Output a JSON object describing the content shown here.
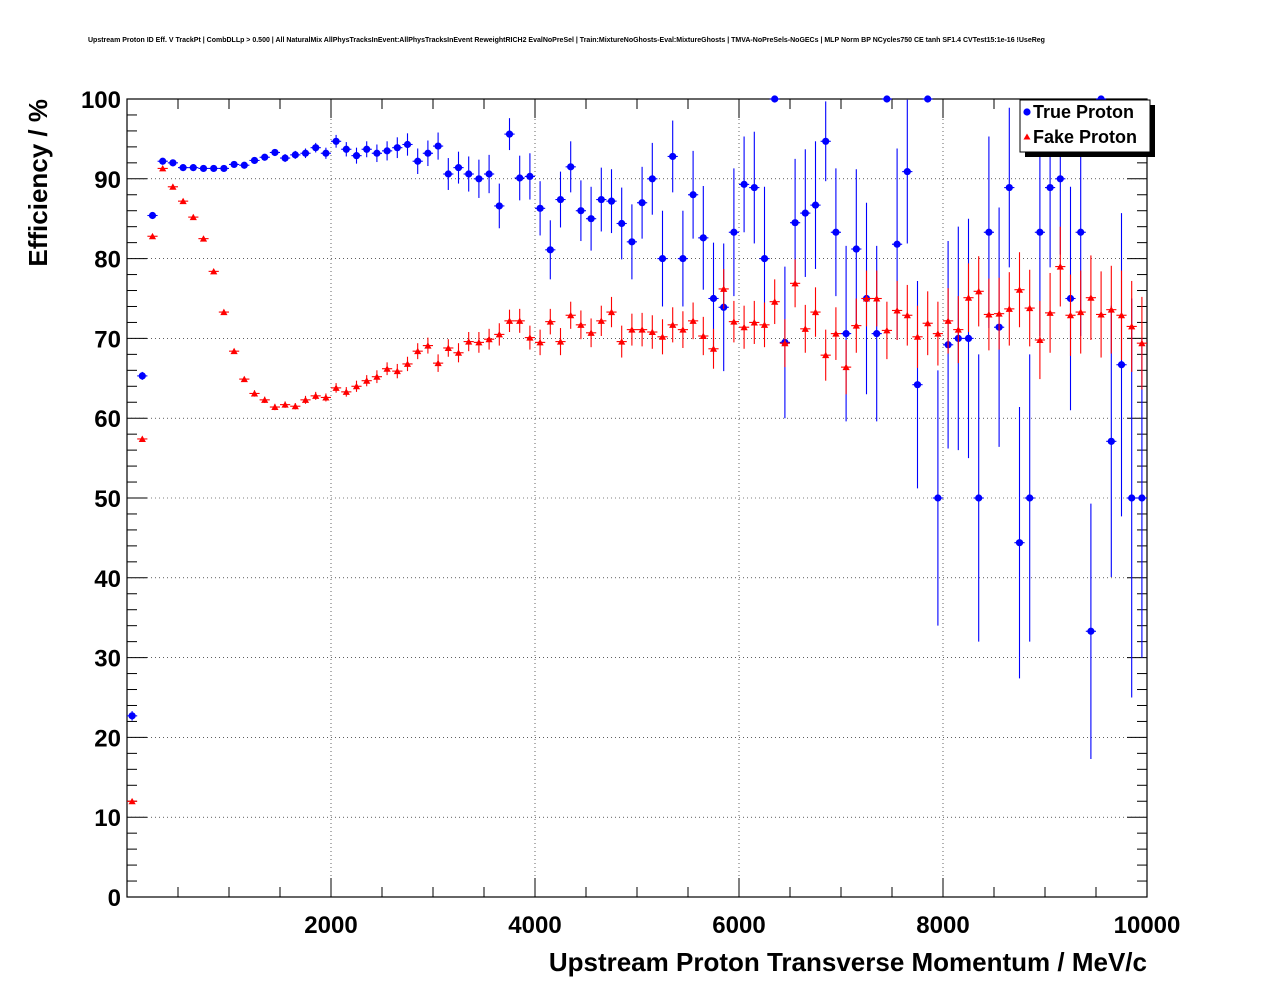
{
  "chart_data": {
    "type": "scatter",
    "title": "Upstream Proton ID Eff. V TrackPt | CombDLLp > 0.500 | All NaturalMix AllPhysTracksInEvent:AllPhysTracksInEvent ReweightRICH2 EvalNoPreSel | Train:MixtureNoGhosts-Eval:MixtureGhosts | TMVA-NoPreSels-NoGECs | MLP Norm BP NCycles750 CE tanh SF1.4 CVTest15:1e-16 !UseReg",
    "xlabel": "Upstream Proton Transverse Momentum / MeV/c",
    "ylabel": "Efficiency / %",
    "xlim": [
      0,
      10000
    ],
    "ylim": [
      0,
      100
    ],
    "x_ticks": [
      2000,
      4000,
      6000,
      8000,
      10000
    ],
    "y_ticks": [
      0,
      10,
      20,
      30,
      40,
      50,
      60,
      70,
      80,
      90,
      100
    ],
    "grid": true,
    "legend": "top-right",
    "series": [
      {
        "name": "True Proton",
        "color": "#0000ff",
        "marker": "circle",
        "points": [
          [
            50,
            22.7,
            0.6
          ],
          [
            150,
            65.3,
            0.5
          ],
          [
            250,
            85.4,
            0.4
          ],
          [
            350,
            92.2,
            0.3
          ],
          [
            450,
            92.0,
            0.3
          ],
          [
            550,
            91.4,
            0.3
          ],
          [
            650,
            91.4,
            0.3
          ],
          [
            750,
            91.3,
            0.3
          ],
          [
            850,
            91.3,
            0.3
          ],
          [
            950,
            91.3,
            0.3
          ],
          [
            1050,
            91.8,
            0.3
          ],
          [
            1150,
            91.7,
            0.3
          ],
          [
            1250,
            92.3,
            0.4
          ],
          [
            1350,
            92.7,
            0.4
          ],
          [
            1450,
            93.3,
            0.4
          ],
          [
            1550,
            92.6,
            0.5
          ],
          [
            1650,
            93.0,
            0.5
          ],
          [
            1750,
            93.2,
            0.6
          ],
          [
            1850,
            93.9,
            0.6
          ],
          [
            1950,
            93.2,
            0.7
          ],
          [
            2050,
            94.7,
            0.8
          ],
          [
            2150,
            93.7,
            0.9
          ],
          [
            2250,
            92.9,
            1.0
          ],
          [
            2350,
            93.7,
            1.0
          ],
          [
            2450,
            93.2,
            1.1
          ],
          [
            2550,
            93.5,
            1.2
          ],
          [
            2650,
            93.9,
            1.3
          ],
          [
            2750,
            94.3,
            1.4
          ],
          [
            2850,
            92.2,
            1.6
          ],
          [
            2950,
            93.2,
            1.6
          ],
          [
            3050,
            94.1,
            1.7
          ],
          [
            3150,
            90.6,
            2.0
          ],
          [
            3250,
            91.4,
            2.0
          ],
          [
            3350,
            90.6,
            2.2
          ],
          [
            3450,
            90.0,
            2.4
          ],
          [
            3550,
            90.6,
            2.4
          ],
          [
            3650,
            86.6,
            2.8
          ],
          [
            3750,
            95.6,
            2.0
          ],
          [
            3850,
            90.1,
            2.8
          ],
          [
            3950,
            90.3,
            2.9
          ],
          [
            4050,
            86.3,
            3.4
          ],
          [
            4150,
            81.1,
            3.7
          ],
          [
            4250,
            87.4,
            3.5
          ],
          [
            4350,
            91.5,
            3.2
          ],
          [
            4450,
            86.0,
            3.8
          ],
          [
            4550,
            85.0,
            4.0
          ],
          [
            4650,
            87.4,
            4.0
          ],
          [
            4750,
            87.2,
            4.0
          ],
          [
            4850,
            84.4,
            4.5
          ],
          [
            4950,
            82.1,
            4.7
          ],
          [
            5050,
            87.0,
            4.5
          ],
          [
            5150,
            90.0,
            4.5
          ],
          [
            5250,
            80.0,
            6.0
          ],
          [
            5350,
            92.8,
            4.5
          ],
          [
            5450,
            80.0,
            6.0
          ],
          [
            5550,
            88.0,
            5.5
          ],
          [
            5650,
            82.6,
            6.5
          ],
          [
            5750,
            75.0,
            7.0
          ],
          [
            5850,
            73.9,
            8.0
          ],
          [
            5950,
            83.3,
            8.0
          ],
          [
            6050,
            89.3,
            6.0
          ],
          [
            6150,
            88.9,
            7.0
          ],
          [
            6250,
            80.0,
            9.0
          ],
          [
            6350,
            100.0,
            0.0
          ],
          [
            6450,
            69.5,
            9.5
          ],
          [
            6550,
            84.5,
            8.0
          ],
          [
            6650,
            85.7,
            8.0
          ],
          [
            6750,
            86.7,
            8.0
          ],
          [
            6850,
            94.7,
            5.0
          ],
          [
            6950,
            83.3,
            8.0
          ],
          [
            7050,
            70.6,
            11.0
          ],
          [
            7150,
            81.2,
            10.0
          ],
          [
            7250,
            75.0,
            12.0
          ],
          [
            7350,
            70.6,
            11.0
          ],
          [
            7450,
            100.0,
            0.0
          ],
          [
            7550,
            81.8,
            12.0
          ],
          [
            7650,
            90.9,
            9.0
          ],
          [
            7750,
            64.2,
            13.0
          ],
          [
            7850,
            100.0,
            0.0
          ],
          [
            7950,
            50.0,
            16.0
          ],
          [
            8050,
            69.2,
            13.0
          ],
          [
            8150,
            70.0,
            14.0
          ],
          [
            8250,
            70.0,
            15.0
          ],
          [
            8350,
            50.0,
            18.0
          ],
          [
            8450,
            83.3,
            12.0
          ],
          [
            8550,
            71.4,
            15.0
          ],
          [
            8650,
            88.9,
            10.0
          ],
          [
            8750,
            44.4,
            17.0
          ],
          [
            8850,
            50.0,
            18.0
          ],
          [
            8950,
            83.3,
            13.0
          ],
          [
            9050,
            88.9,
            10.0
          ],
          [
            9150,
            90.0,
            9.5
          ],
          [
            9250,
            75.0,
            14.0
          ],
          [
            9350,
            83.3,
            13.0
          ],
          [
            9450,
            33.3,
            16.0
          ],
          [
            9550,
            100.0,
            0.0
          ],
          [
            9650,
            57.1,
            17.0
          ],
          [
            9750,
            66.7,
            19.0
          ],
          [
            9850,
            50.0,
            25.0
          ],
          [
            9950,
            50.0,
            20.0
          ]
        ]
      },
      {
        "name": "Fake Proton",
        "color": "#ff0000",
        "marker": "triangle",
        "points": [
          [
            50,
            12.0,
            0.2
          ],
          [
            150,
            57.4,
            0.3
          ],
          [
            250,
            82.8,
            0.3
          ],
          [
            350,
            91.3,
            0.3
          ],
          [
            450,
            89.0,
            0.3
          ],
          [
            550,
            87.2,
            0.3
          ],
          [
            650,
            85.2,
            0.3
          ],
          [
            750,
            82.5,
            0.3
          ],
          [
            850,
            78.4,
            0.3
          ],
          [
            950,
            73.3,
            0.3
          ],
          [
            1050,
            68.4,
            0.3
          ],
          [
            1150,
            64.9,
            0.3
          ],
          [
            1250,
            63.1,
            0.4
          ],
          [
            1350,
            62.3,
            0.4
          ],
          [
            1450,
            61.4,
            0.4
          ],
          [
            1550,
            61.7,
            0.4
          ],
          [
            1650,
            61.5,
            0.4
          ],
          [
            1750,
            62.3,
            0.5
          ],
          [
            1850,
            62.8,
            0.5
          ],
          [
            1950,
            62.6,
            0.5
          ],
          [
            2050,
            63.8,
            0.6
          ],
          [
            2150,
            63.3,
            0.6
          ],
          [
            2250,
            64.0,
            0.7
          ],
          [
            2350,
            64.7,
            0.7
          ],
          [
            2450,
            65.2,
            0.8
          ],
          [
            2550,
            66.2,
            0.8
          ],
          [
            2650,
            65.9,
            0.9
          ],
          [
            2750,
            66.8,
            0.9
          ],
          [
            2850,
            68.4,
            1.0
          ],
          [
            2950,
            69.1,
            1.0
          ],
          [
            3050,
            66.9,
            1.1
          ],
          [
            3150,
            68.8,
            1.1
          ],
          [
            3250,
            68.2,
            1.2
          ],
          [
            3350,
            69.6,
            1.2
          ],
          [
            3450,
            69.5,
            1.3
          ],
          [
            3550,
            69.9,
            1.3
          ],
          [
            3650,
            70.5,
            1.4
          ],
          [
            3750,
            72.2,
            1.4
          ],
          [
            3850,
            72.2,
            1.5
          ],
          [
            3950,
            70.1,
            1.5
          ],
          [
            4050,
            69.5,
            1.6
          ],
          [
            4150,
            72.1,
            1.6
          ],
          [
            4250,
            69.6,
            1.7
          ],
          [
            4350,
            72.9,
            1.7
          ],
          [
            4450,
            71.7,
            1.8
          ],
          [
            4550,
            70.7,
            1.8
          ],
          [
            4650,
            72.2,
            1.9
          ],
          [
            4750,
            73.3,
            1.9
          ],
          [
            4850,
            69.6,
            2.0
          ],
          [
            4950,
            71.1,
            2.0
          ],
          [
            5050,
            71.1,
            2.1
          ],
          [
            5150,
            70.8,
            2.1
          ],
          [
            5250,
            70.2,
            2.2
          ],
          [
            5350,
            71.7,
            2.2
          ],
          [
            5450,
            71.1,
            2.3
          ],
          [
            5550,
            72.2,
            2.3
          ],
          [
            5650,
            70.3,
            2.4
          ],
          [
            5750,
            68.7,
            2.5
          ],
          [
            5850,
            76.2,
            2.5
          ],
          [
            5950,
            72.1,
            2.6
          ],
          [
            6050,
            71.4,
            2.7
          ],
          [
            6150,
            72.0,
            2.7
          ],
          [
            6250,
            71.7,
            2.8
          ],
          [
            6350,
            74.6,
            2.8
          ],
          [
            6450,
            69.4,
            3.0
          ],
          [
            6550,
            76.9,
            3.0
          ],
          [
            6650,
            71.2,
            3.0
          ],
          [
            6750,
            73.3,
            3.1
          ],
          [
            6850,
            67.9,
            3.2
          ],
          [
            6950,
            70.6,
            3.3
          ],
          [
            7050,
            66.4,
            3.4
          ],
          [
            7150,
            71.6,
            3.4
          ],
          [
            7250,
            75.0,
            3.5
          ],
          [
            7350,
            75.0,
            3.5
          ],
          [
            7450,
            71.0,
            3.6
          ],
          [
            7550,
            73.5,
            3.7
          ],
          [
            7650,
            72.9,
            3.8
          ],
          [
            7750,
            70.2,
            3.9
          ],
          [
            7850,
            71.9,
            4.0
          ],
          [
            7950,
            70.6,
            4.0
          ],
          [
            8050,
            72.2,
            4.1
          ],
          [
            8150,
            71.1,
            4.2
          ],
          [
            8250,
            75.1,
            4.3
          ],
          [
            8350,
            75.9,
            4.4
          ],
          [
            8450,
            73.0,
            4.5
          ],
          [
            8550,
            73.1,
            4.5
          ],
          [
            8650,
            73.7,
            4.6
          ],
          [
            8750,
            76.1,
            4.7
          ],
          [
            8850,
            73.8,
            4.8
          ],
          [
            8950,
            69.8,
            4.9
          ],
          [
            9050,
            73.2,
            5.0
          ],
          [
            9150,
            79.0,
            5.0
          ],
          [
            9250,
            72.9,
            5.1
          ],
          [
            9350,
            73.3,
            5.2
          ],
          [
            9450,
            75.1,
            5.3
          ],
          [
            9550,
            73.0,
            5.4
          ],
          [
            9650,
            73.6,
            5.5
          ],
          [
            9750,
            72.9,
            5.6
          ],
          [
            9850,
            71.5,
            5.7
          ],
          [
            9950,
            69.4,
            5.8
          ]
        ]
      }
    ]
  }
}
